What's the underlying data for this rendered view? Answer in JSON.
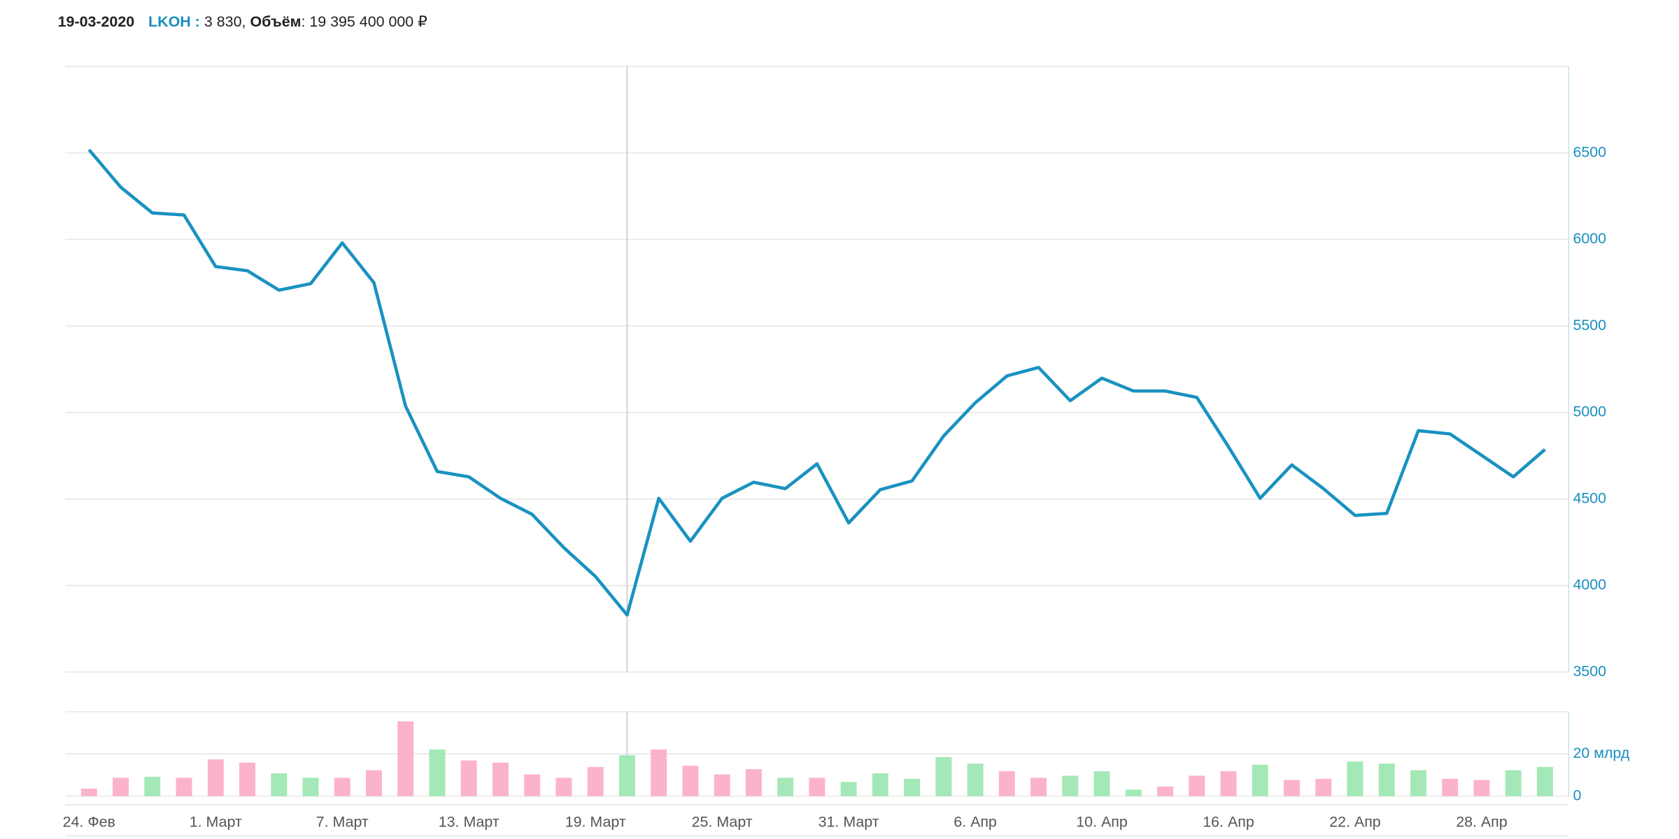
{
  "header": {
    "date": "19-03-2020",
    "ticker": "LKOH :",
    "price": "3 830,",
    "volume_label": "Объём",
    "volume": ": 19 395 400 000 ₽"
  },
  "chart_data": [
    {
      "type": "line",
      "name": "price",
      "categories": [
        "24. Фев",
        null,
        null,
        null,
        "1. Март",
        null,
        null,
        null,
        "7. Март",
        null,
        null,
        null,
        "13. Март",
        null,
        null,
        null,
        "19. Март",
        null,
        null,
        null,
        "25. Март",
        null,
        null,
        null,
        "31. Март",
        null,
        null,
        null,
        "6. Апр",
        null,
        null,
        null,
        "10. Апр",
        null,
        null,
        null,
        "16. Апр",
        null,
        null,
        null,
        "22. Апр",
        null,
        null,
        null,
        "28. Апр",
        null,
        null
      ],
      "series": [
        {
          "color": "#1992c0",
          "values": [
            6518,
            6302,
            6153,
            6141,
            5843,
            5819,
            5707,
            5744,
            5980,
            5750,
            5037,
            4659,
            4628,
            4504,
            4411,
            4219,
            4052,
            3830,
            4504,
            4256,
            4504,
            4597,
            4560,
            4703,
            4362,
            4554,
            4604,
            4864,
            5056,
            5211,
            5260,
            5068,
            5198,
            5124,
            5124,
            5087,
            4802,
            4504,
            4697,
            4560,
            4405,
            4417,
            4895,
            4876,
            4752,
            4628,
            4786
          ]
        }
      ],
      "ylim": [
        3500,
        7000
      ],
      "yticks": [
        3500,
        4000,
        4500,
        5000,
        5500,
        6000,
        6500
      ],
      "grid": true,
      "crosshair_index": 17
    },
    {
      "type": "bar",
      "name": "volume",
      "values": [
        3.6,
        8.7,
        9.2,
        8.7,
        17.4,
        15.9,
        10.8,
        8.7,
        8.7,
        12.3,
        35.4,
        22.1,
        16.9,
        15.9,
        10.3,
        8.7,
        13.8,
        19.3954,
        22.1,
        14.4,
        10.3,
        12.8,
        8.7,
        8.7,
        6.7,
        10.8,
        8.2,
        18.5,
        15.4,
        11.8,
        8.7,
        9.7,
        11.8,
        3.1,
        4.6,
        9.7,
        11.8,
        14.9,
        7.7,
        8.2,
        16.4,
        15.4,
        12.3,
        8.2,
        7.7,
        12.3,
        13.8
      ],
      "colors": [
        "#fbb3cb",
        "#fbb3cb",
        "#a3e8b6",
        "#fbb3cb",
        "#fbb3cb",
        "#fbb3cb",
        "#a3e8b6",
        "#a3e8b6",
        "#fbb3cb",
        "#fbb3cb",
        "#fbb3cb",
        "#a3e8b6",
        "#fbb3cb",
        "#fbb3cb",
        "#fbb3cb",
        "#fbb3cb",
        "#fbb3cb",
        "#a3e8b6",
        "#fbb3cb",
        "#fbb3cb",
        "#fbb3cb",
        "#fbb3cb",
        "#a3e8b6",
        "#fbb3cb",
        "#a3e8b6",
        "#a3e8b6",
        "#a3e8b6",
        "#a3e8b6",
        "#a3e8b6",
        "#fbb3cb",
        "#fbb3cb",
        "#a3e8b6",
        "#a3e8b6",
        "#a3e8b6",
        "#fbb3cb",
        "#fbb3cb",
        "#fbb3cb",
        "#a3e8b6",
        "#fbb3cb",
        "#fbb3cb",
        "#a3e8b6",
        "#a3e8b6",
        "#a3e8b6",
        "#fbb3cb",
        "#fbb3cb",
        "#a3e8b6",
        "#a3e8b6"
      ],
      "ylim": [
        0,
        40
      ],
      "yticks": [
        0,
        {
          "value": 20,
          "label": "20 млрд"
        }
      ],
      "grid": true
    }
  ]
}
